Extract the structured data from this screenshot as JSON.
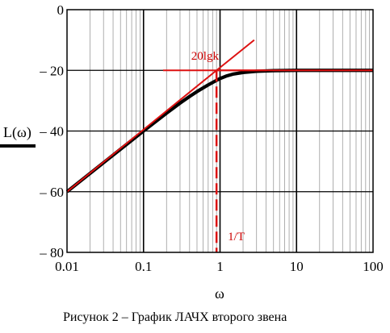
{
  "chart_data": {
    "type": "line",
    "x_scale": "log",
    "xlim": [
      0.01,
      100
    ],
    "ylim": [
      -80,
      0
    ],
    "grid": true,
    "x_ticks": [
      {
        "value": 0.01,
        "label": "0.01"
      },
      {
        "value": 0.1,
        "label": "0.1"
      },
      {
        "value": 1,
        "label": "1"
      },
      {
        "value": 10,
        "label": "10"
      },
      {
        "value": 100,
        "label": "100"
      }
    ],
    "y_ticks": [
      {
        "value": 0,
        "label": "0"
      },
      {
        "value": -20,
        "label": "– 20"
      },
      {
        "value": -40,
        "label": "– 40"
      },
      {
        "value": -60,
        "label": "– 60"
      },
      {
        "value": -80,
        "label": "– 80"
      }
    ],
    "xlabel": "ω",
    "ylabel": "L(ω)",
    "series": [
      {
        "color": "#000000",
        "x": [
          0.01,
          0.05,
          0.1,
          0.2,
          0.3,
          0.4,
          0.5,
          0.6,
          0.7,
          0.8,
          0.9,
          1.0,
          1.2,
          1.5,
          2,
          3,
          5,
          10,
          100
        ],
        "y": [
          -60,
          -46,
          -40,
          -34.1,
          -30.8,
          -28.6,
          -27.0,
          -25.8,
          -24.8,
          -24.0,
          -23.3,
          -22.7,
          -21.9,
          -21.2,
          -20.7,
          -20.3,
          -20.1,
          -20.0,
          -20.0
        ]
      },
      {
        "color": "#dd1111",
        "x": [
          0.01,
          0.9,
          100
        ],
        "y": [
          -60,
          -20.0,
          -20.0
        ]
      }
    ],
    "annotations": {
      "gain_label": "20lgk",
      "corner_label": "1/T",
      "corner_x": 0.9,
      "asymptote_extension": {
        "x": [
          0.9,
          2.8
        ],
        "y": [
          -20,
          -10
        ]
      },
      "level_line": {
        "x": [
          0.18,
          4.0
        ],
        "y": [
          -20,
          -20
        ]
      }
    }
  },
  "caption": "Рисунок 2 – График ЛАЧХ второго звена"
}
